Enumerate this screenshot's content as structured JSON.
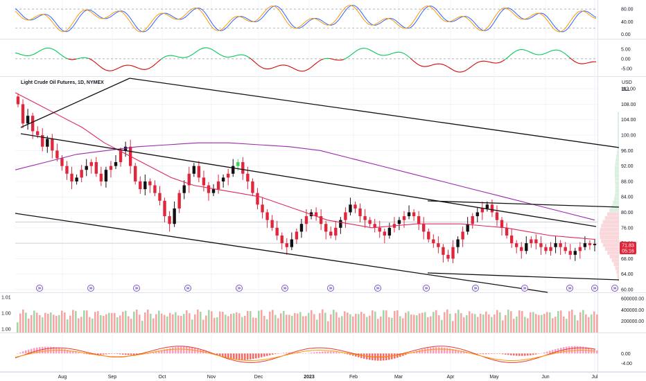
{
  "chart_data": {
    "type": "candlestick",
    "title": "Light Crude Oil Futures, 1D, NYMEX",
    "currency": "USD",
    "unit": "BLL",
    "last_price": "71.83",
    "countdown": "05:16",
    "x_labels": [
      "Aug",
      "Sep",
      "Oct",
      "Nov",
      "Dec",
      "2023",
      "Feb",
      "Mar",
      "Apr",
      "May",
      "Jun",
      "Jul"
    ],
    "price_axis": {
      "ticks": [
        "112.00",
        "108.00",
        "104.00",
        "100.00",
        "96.00",
        "92.00",
        "88.00",
        "84.00",
        "80.00",
        "76.00",
        "72.00",
        "68.00",
        "64.00",
        "60.00"
      ],
      "ylim": [
        60,
        114
      ]
    },
    "stoch_axis": {
      "ticks": [
        "80.00",
        "40.00",
        "0.00"
      ],
      "ylim": [
        -5,
        100
      ]
    },
    "osc_axis": {
      "ticks": [
        "5.00",
        "0.00",
        "-5.00"
      ],
      "ylim": [
        -7.5,
        8.5
      ]
    },
    "volume_axis": {
      "ticks": [
        "600000.00",
        "400000.00",
        "200000.00"
      ],
      "ylim": [
        0,
        650000
      ]
    },
    "volume_left_axis": {
      "ticks": [
        "1.01",
        "1.00",
        "1.00"
      ]
    },
    "macd_axis": {
      "ticks": [
        "0.00",
        "-4.00"
      ],
      "ylim": [
        -6.5,
        7.5
      ]
    },
    "ohlc_closes": [
      108,
      103,
      105,
      101,
      100,
      97,
      99,
      96,
      94,
      92,
      90,
      88,
      89,
      91,
      92,
      93,
      90,
      88,
      91,
      92,
      93,
      96,
      97,
      92,
      88,
      86,
      88,
      87,
      85,
      83,
      79,
      77,
      81,
      85,
      87,
      90,
      92,
      89,
      87,
      85,
      86,
      88,
      89,
      90,
      92,
      93,
      90,
      88,
      85,
      82,
      80,
      78,
      76,
      74,
      72,
      71,
      73,
      75,
      77,
      79,
      80,
      79,
      77,
      75,
      74,
      76,
      78,
      80,
      82,
      81,
      79,
      78,
      77,
      76,
      75,
      74,
      76,
      77,
      78,
      79,
      80,
      79,
      77,
      75,
      73,
      72,
      71,
      69,
      68,
      71,
      73,
      75,
      77,
      79,
      80,
      81,
      82,
      80,
      78,
      76,
      74,
      72,
      71,
      70,
      72,
      73,
      72,
      71,
      70,
      71,
      72,
      71,
      70,
      69,
      70,
      71,
      72,
      71.5,
      71.83
    ],
    "ma_fast_values": [
      111,
      108,
      105,
      102,
      98,
      95,
      92,
      89,
      87,
      86,
      85,
      84,
      82,
      80,
      78,
      77,
      76,
      76.5,
      77,
      77,
      77,
      76.5,
      76,
      75,
      74,
      73.5,
      73
    ],
    "ma_slow_values": [
      91,
      93,
      95,
      96,
      97,
      97.5,
      98,
      98,
      97.5,
      97,
      96,
      94,
      92,
      90,
      88,
      86,
      84,
      82,
      80,
      78
    ],
    "legend": "none",
    "grid": true
  }
}
